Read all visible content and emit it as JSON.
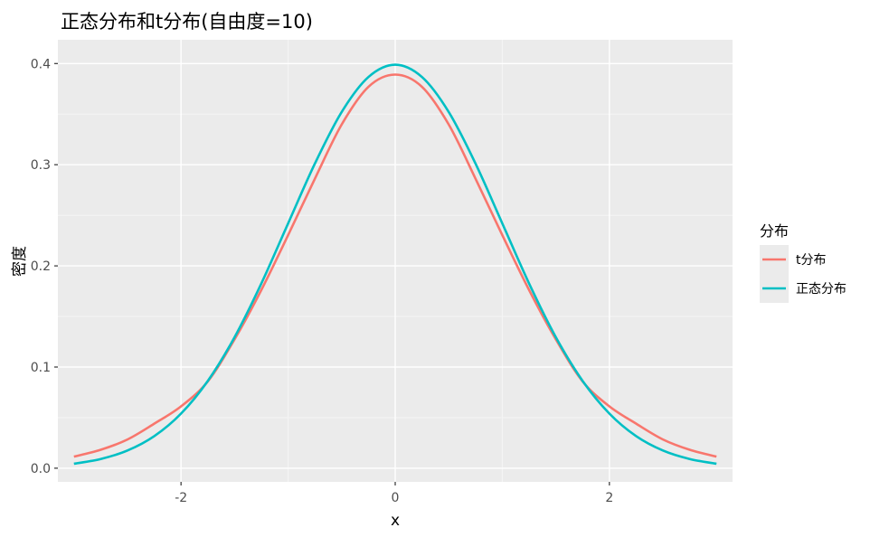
{
  "chart_data": {
    "type": "line",
    "title": "正态分布和t分布(自由度=10)",
    "xlabel": "x",
    "ylabel": "密度",
    "xlim": [
      -3.15,
      3.15
    ],
    "ylim": [
      -0.0135,
      0.4235
    ],
    "x_ticks": [
      -2,
      0,
      2
    ],
    "x_tick_labels": [
      "-2",
      "0",
      "2"
    ],
    "y_ticks": [
      0.0,
      0.1,
      0.2,
      0.3,
      0.4
    ],
    "y_tick_labels": [
      "0.0",
      "0.1",
      "0.2",
      "0.3",
      "0.4"
    ],
    "grid": true,
    "legend": {
      "title": "分布",
      "placement": "right"
    },
    "series": [
      {
        "name": "t分布",
        "color": "#F8766D",
        "x": [
          -3.0,
          -2.75,
          -2.5,
          -2.25,
          -2.0,
          -1.75,
          -1.5,
          -1.25,
          -1.0,
          -0.75,
          -0.5,
          -0.25,
          0.0,
          0.25,
          0.5,
          0.75,
          1.0,
          1.25,
          1.5,
          1.75,
          2.0,
          2.25,
          2.5,
          2.75,
          3.0
        ],
        "y": [
          0.0114,
          0.0182,
          0.0284,
          0.044,
          0.0611,
          0.0858,
          0.1274,
          0.1762,
          0.2304,
          0.2862,
          0.3397,
          0.377,
          0.3891,
          0.377,
          0.3397,
          0.2862,
          0.2304,
          0.1762,
          0.1274,
          0.0858,
          0.0611,
          0.044,
          0.0284,
          0.0182,
          0.0114
        ]
      },
      {
        "name": "正态分布",
        "color": "#00BFC4",
        "x": [
          -3.0,
          -2.75,
          -2.5,
          -2.25,
          -2.0,
          -1.75,
          -1.5,
          -1.25,
          -1.0,
          -0.75,
          -0.5,
          -0.25,
          0.0,
          0.25,
          0.5,
          0.75,
          1.0,
          1.25,
          1.5,
          1.75,
          2.0,
          2.25,
          2.5,
          2.75,
          3.0
        ],
        "y": [
          0.0044,
          0.0091,
          0.0175,
          0.0317,
          0.054,
          0.0863,
          0.1295,
          0.1826,
          0.242,
          0.3011,
          0.3521,
          0.3867,
          0.3989,
          0.3867,
          0.3521,
          0.3011,
          0.242,
          0.1826,
          0.1295,
          0.0863,
          0.054,
          0.0317,
          0.0175,
          0.0091,
          0.0044
        ]
      }
    ]
  }
}
